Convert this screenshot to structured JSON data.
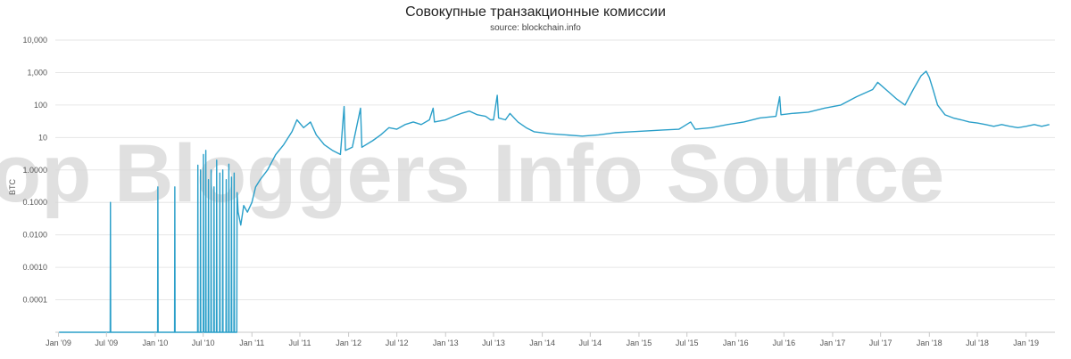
{
  "watermark": "op Bloggers Info Source",
  "chart_data": {
    "type": "line",
    "title": "Совокупные транзакционные комиссии",
    "subtitle": "source: blockchain.info",
    "ylabel": "BTC",
    "xlabel": "",
    "yscale": "log",
    "ylim": [
      1e-05,
      10000
    ],
    "xlim": [
      "2008-12-20",
      "2019-04-20"
    ],
    "grid": true,
    "line_color": "#2a9fc9",
    "y_ticks": [
      {
        "value": 10000,
        "label": "10,000"
      },
      {
        "value": 1000,
        "label": "1,000"
      },
      {
        "value": 100,
        "label": "100"
      },
      {
        "value": 10,
        "label": "10"
      },
      {
        "value": 1,
        "label": "1.0000"
      },
      {
        "value": 0.1,
        "label": "0.1000"
      },
      {
        "value": 0.01,
        "label": "0.0100"
      },
      {
        "value": 0.001,
        "label": "0.0010"
      },
      {
        "value": 0.0001,
        "label": "0.0001"
      }
    ],
    "x_ticks": [
      {
        "value": "2009-01-01",
        "label": "Jan '09"
      },
      {
        "value": "2009-07-01",
        "label": "Jul '09"
      },
      {
        "value": "2010-01-01",
        "label": "Jan '10"
      },
      {
        "value": "2010-07-01",
        "label": "Jul '10"
      },
      {
        "value": "2011-01-01",
        "label": "Jan '11"
      },
      {
        "value": "2011-07-01",
        "label": "Jul '11"
      },
      {
        "value": "2012-01-01",
        "label": "Jan '12"
      },
      {
        "value": "2012-07-01",
        "label": "Jul '12"
      },
      {
        "value": "2013-01-01",
        "label": "Jan '13"
      },
      {
        "value": "2013-07-01",
        "label": "Jul '13"
      },
      {
        "value": "2014-01-01",
        "label": "Jan '14"
      },
      {
        "value": "2014-07-01",
        "label": "Jul '14"
      },
      {
        "value": "2015-01-01",
        "label": "Jan '15"
      },
      {
        "value": "2015-07-01",
        "label": "Jul '15"
      },
      {
        "value": "2016-01-01",
        "label": "Jan '16"
      },
      {
        "value": "2016-07-01",
        "label": "Jul '16"
      },
      {
        "value": "2017-01-01",
        "label": "Jan '17"
      },
      {
        "value": "2017-07-01",
        "label": "Jul '17"
      },
      {
        "value": "2018-01-01",
        "label": "Jan '18"
      },
      {
        "value": "2018-07-01",
        "label": "Jul '18"
      },
      {
        "value": "2019-01-01",
        "label": "Jan '19"
      }
    ],
    "series": [
      {
        "values": [
          [
            "2009-01-03",
            1e-05
          ],
          [
            "2009-07-15",
            1e-05
          ],
          [
            "2009-07-16",
            0.1
          ],
          [
            "2009-07-17",
            1e-05
          ],
          [
            "2010-01-10",
            1e-05
          ],
          [
            "2010-01-11",
            0.3
          ],
          [
            "2010-01-12",
            1e-05
          ],
          [
            "2010-03-15",
            1e-05
          ],
          [
            "2010-03-16",
            0.3
          ],
          [
            "2010-03-17",
            1e-05
          ],
          [
            "2010-06-10",
            1e-05
          ],
          [
            "2010-06-11",
            1.4
          ],
          [
            "2010-06-12",
            1e-05
          ],
          [
            "2010-06-20",
            1e-05
          ],
          [
            "2010-06-21",
            1.0
          ],
          [
            "2010-06-22",
            1e-05
          ],
          [
            "2010-07-01",
            1e-05
          ],
          [
            "2010-07-02",
            3.0
          ],
          [
            "2010-07-03",
            1e-05
          ],
          [
            "2010-07-10",
            1e-05
          ],
          [
            "2010-07-11",
            4.0
          ],
          [
            "2010-07-12",
            1e-05
          ],
          [
            "2010-07-20",
            1e-05
          ],
          [
            "2010-07-21",
            0.5
          ],
          [
            "2010-07-22",
            1e-05
          ],
          [
            "2010-07-30",
            1e-05
          ],
          [
            "2010-07-31",
            1.0
          ],
          [
            "2010-08-01",
            1e-05
          ],
          [
            "2010-08-10",
            1e-05
          ],
          [
            "2010-08-11",
            0.3
          ],
          [
            "2010-08-12",
            1e-05
          ],
          [
            "2010-08-20",
            1e-05
          ],
          [
            "2010-08-21",
            2.0
          ],
          [
            "2010-08-22",
            1e-05
          ],
          [
            "2010-09-01",
            1e-05
          ],
          [
            "2010-09-02",
            0.8
          ],
          [
            "2010-09-03",
            1e-05
          ],
          [
            "2010-09-12",
            1e-05
          ],
          [
            "2010-09-13",
            1.0
          ],
          [
            "2010-09-14",
            1e-05
          ],
          [
            "2010-09-25",
            1e-05
          ],
          [
            "2010-09-26",
            0.5
          ],
          [
            "2010-09-27",
            1e-05
          ],
          [
            "2010-10-05",
            1e-05
          ],
          [
            "2010-10-06",
            1.5
          ],
          [
            "2010-10-07",
            1e-05
          ],
          [
            "2010-10-15",
            1e-05
          ],
          [
            "2010-10-16",
            0.6
          ],
          [
            "2010-10-17",
            1e-05
          ],
          [
            "2010-10-25",
            1e-05
          ],
          [
            "2010-10-26",
            0.8
          ],
          [
            "2010-10-27",
            1e-05
          ],
          [
            "2010-11-05",
            1e-05
          ],
          [
            "2010-11-06",
            0.2
          ],
          [
            "2010-11-10",
            0.05
          ],
          [
            "2010-11-20",
            0.02
          ],
          [
            "2010-12-01",
            0.08
          ],
          [
            "2010-12-15",
            0.05
          ],
          [
            "2011-01-01",
            0.1
          ],
          [
            "2011-01-15",
            0.3
          ],
          [
            "2011-02-01",
            0.5
          ],
          [
            "2011-03-01",
            1.0
          ],
          [
            "2011-04-01",
            3.0
          ],
          [
            "2011-05-01",
            6.0
          ],
          [
            "2011-06-01",
            15
          ],
          [
            "2011-06-20",
            35
          ],
          [
            "2011-07-15",
            20
          ],
          [
            "2011-08-10",
            30
          ],
          [
            "2011-09-01",
            12
          ],
          [
            "2011-10-01",
            6
          ],
          [
            "2011-11-01",
            4
          ],
          [
            "2011-12-01",
            3
          ],
          [
            "2011-12-15",
            90
          ],
          [
            "2011-12-20",
            4
          ],
          [
            "2012-01-15",
            5
          ],
          [
            "2012-02-15",
            80
          ],
          [
            "2012-02-20",
            5
          ],
          [
            "2012-04-01",
            8
          ],
          [
            "2012-05-01",
            12
          ],
          [
            "2012-06-01",
            20
          ],
          [
            "2012-07-01",
            18
          ],
          [
            "2012-08-01",
            25
          ],
          [
            "2012-09-01",
            30
          ],
          [
            "2012-10-01",
            25
          ],
          [
            "2012-11-01",
            35
          ],
          [
            "2012-11-15",
            80
          ],
          [
            "2012-11-20",
            30
          ],
          [
            "2013-01-01",
            35
          ],
          [
            "2013-02-01",
            45
          ],
          [
            "2013-03-01",
            55
          ],
          [
            "2013-04-01",
            65
          ],
          [
            "2013-05-01",
            50
          ],
          [
            "2013-06-01",
            45
          ],
          [
            "2013-06-20",
            35
          ],
          [
            "2013-07-01",
            35
          ],
          [
            "2013-07-15",
            200
          ],
          [
            "2013-07-20",
            40
          ],
          [
            "2013-08-15",
            35
          ],
          [
            "2013-09-01",
            55
          ],
          [
            "2013-10-01",
            30
          ],
          [
            "2013-11-01",
            20
          ],
          [
            "2013-12-01",
            15
          ],
          [
            "2014-01-01",
            14
          ],
          [
            "2014-02-01",
            13
          ],
          [
            "2014-04-01",
            12
          ],
          [
            "2014-06-01",
            11
          ],
          [
            "2014-08-01",
            12
          ],
          [
            "2014-10-01",
            14
          ],
          [
            "2014-12-01",
            15
          ],
          [
            "2015-02-01",
            16
          ],
          [
            "2015-04-01",
            17
          ],
          [
            "2015-06-01",
            18
          ],
          [
            "2015-07-15",
            30
          ],
          [
            "2015-08-01",
            18
          ],
          [
            "2015-10-01",
            20
          ],
          [
            "2015-12-01",
            25
          ],
          [
            "2016-02-01",
            30
          ],
          [
            "2016-04-01",
            40
          ],
          [
            "2016-06-01",
            45
          ],
          [
            "2016-06-15",
            180
          ],
          [
            "2016-06-20",
            50
          ],
          [
            "2016-08-01",
            55
          ],
          [
            "2016-10-01",
            60
          ],
          [
            "2016-12-01",
            80
          ],
          [
            "2017-02-01",
            100
          ],
          [
            "2017-04-01",
            180
          ],
          [
            "2017-06-01",
            300
          ],
          [
            "2017-06-20",
            500
          ],
          [
            "2017-08-01",
            250
          ],
          [
            "2017-09-01",
            150
          ],
          [
            "2017-10-01",
            100
          ],
          [
            "2017-11-01",
            300
          ],
          [
            "2017-12-01",
            800
          ],
          [
            "2017-12-20",
            1100
          ],
          [
            "2018-01-01",
            700
          ],
          [
            "2018-01-15",
            300
          ],
          [
            "2018-02-01",
            100
          ],
          [
            "2018-03-01",
            50
          ],
          [
            "2018-04-01",
            40
          ],
          [
            "2018-05-01",
            35
          ],
          [
            "2018-06-01",
            30
          ],
          [
            "2018-07-01",
            28
          ],
          [
            "2018-08-01",
            25
          ],
          [
            "2018-09-01",
            22
          ],
          [
            "2018-10-01",
            25
          ],
          [
            "2018-11-01",
            22
          ],
          [
            "2018-12-01",
            20
          ],
          [
            "2019-01-01",
            22
          ],
          [
            "2019-02-01",
            25
          ],
          [
            "2019-03-01",
            22
          ],
          [
            "2019-03-30",
            25
          ]
        ]
      }
    ]
  }
}
